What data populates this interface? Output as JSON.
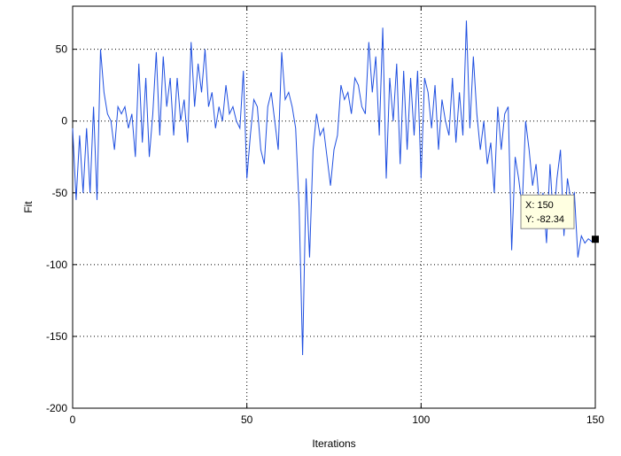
{
  "chart_data": {
    "type": "line",
    "xlabel": "Iterations",
    "ylabel": "Fit",
    "x": [
      0,
      1,
      2,
      3,
      4,
      5,
      6,
      7,
      8,
      9,
      10,
      11,
      12,
      13,
      14,
      15,
      16,
      17,
      18,
      19,
      20,
      21,
      22,
      23,
      24,
      25,
      26,
      27,
      28,
      29,
      30,
      31,
      32,
      33,
      34,
      35,
      36,
      37,
      38,
      39,
      40,
      41,
      42,
      43,
      44,
      45,
      46,
      47,
      48,
      49,
      50,
      51,
      52,
      53,
      54,
      55,
      56,
      57,
      58,
      59,
      60,
      61,
      62,
      63,
      64,
      65,
      66,
      67,
      68,
      69,
      70,
      71,
      72,
      73,
      74,
      75,
      76,
      77,
      78,
      79,
      80,
      81,
      82,
      83,
      84,
      85,
      86,
      87,
      88,
      89,
      90,
      91,
      92,
      93,
      94,
      95,
      96,
      97,
      98,
      99,
      100,
      101,
      102,
      103,
      104,
      105,
      106,
      107,
      108,
      109,
      110,
      111,
      112,
      113,
      114,
      115,
      116,
      117,
      118,
      119,
      120,
      121,
      122,
      123,
      124,
      125,
      126,
      127,
      128,
      129,
      130,
      131,
      132,
      133,
      134,
      135,
      136,
      137,
      138,
      139,
      140,
      141,
      142,
      143,
      144,
      145,
      146,
      147,
      148,
      149,
      150
    ],
    "series": [
      {
        "name": "Fit",
        "color": "#1f4fe0",
        "values": [
          -5,
          -55,
          -10,
          -50,
          -5,
          -50,
          10,
          -55,
          50,
          20,
          5,
          0,
          -20,
          10,
          5,
          10,
          -5,
          5,
          -25,
          40,
          -15,
          30,
          -25,
          5,
          48,
          -10,
          45,
          10,
          30,
          -10,
          30,
          0,
          15,
          -15,
          55,
          10,
          40,
          20,
          50,
          10,
          20,
          -5,
          10,
          0,
          25,
          5,
          10,
          0,
          -5,
          35,
          -40,
          -10,
          15,
          10,
          -20,
          -30,
          10,
          20,
          0,
          -20,
          48,
          15,
          20,
          10,
          -5,
          -60,
          -163,
          -40,
          -95,
          -20,
          5,
          -10,
          -5,
          -25,
          -45,
          -20,
          -10,
          25,
          15,
          20,
          5,
          30,
          25,
          10,
          5,
          55,
          20,
          45,
          -10,
          65,
          -40,
          30,
          0,
          40,
          -30,
          35,
          -20,
          30,
          -10,
          35,
          -40,
          30,
          20,
          -5,
          25,
          -20,
          15,
          0,
          -10,
          30,
          -15,
          20,
          -10,
          70,
          -5,
          45,
          5,
          -20,
          0,
          -30,
          -15,
          -50,
          10,
          -20,
          5,
          10,
          -90,
          -25,
          -40,
          -60,
          0,
          -20,
          -45,
          -30,
          -60,
          -50,
          -85,
          -30,
          -70,
          -40,
          -20,
          -80,
          -40,
          -55,
          -50,
          -95,
          -80,
          -85,
          -82,
          -84,
          -82.34
        ]
      }
    ],
    "xlim": [
      0,
      150
    ],
    "xticks": [
      0,
      50,
      100,
      150
    ],
    "ylim": [
      -200,
      80
    ],
    "yticks": [
      -200,
      -150,
      -100,
      -50,
      0,
      50
    ],
    "grid": true,
    "datatip": {
      "lines": [
        "X: 150",
        "Y: -82.34"
      ]
    }
  }
}
